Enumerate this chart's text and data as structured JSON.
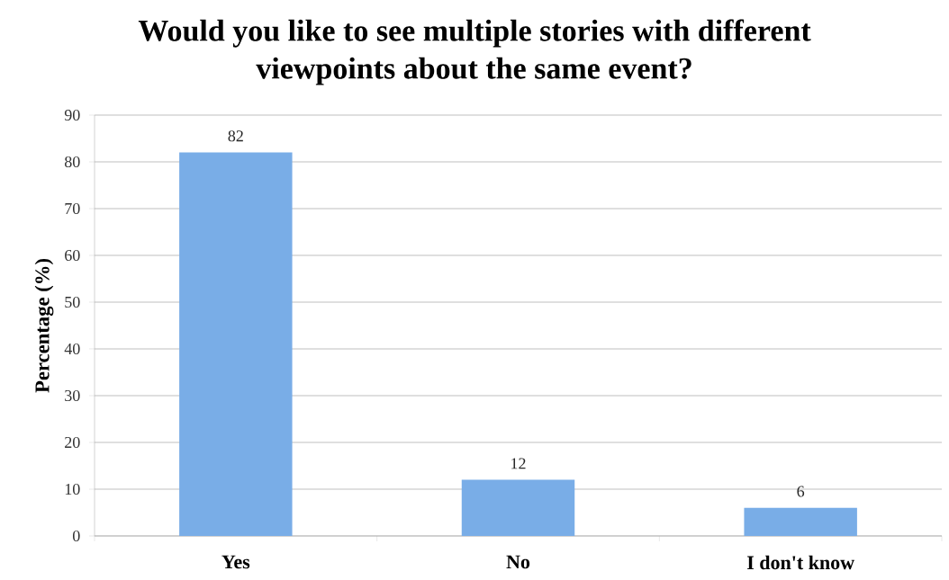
{
  "chart_data": {
    "type": "bar",
    "title": "Would you like to see multiple stories with different viewpoints about the same event?",
    "ylabel": "Percentage (%)",
    "categories": [
      "Yes",
      "No",
      "I don't know"
    ],
    "values": [
      82,
      12,
      6
    ],
    "color": "#79ade7",
    "ylim": [
      0,
      90
    ],
    "yticks": [
      0,
      10,
      20,
      30,
      40,
      50,
      60,
      70,
      80,
      90
    ],
    "grid": "y",
    "data_labels": true
  }
}
